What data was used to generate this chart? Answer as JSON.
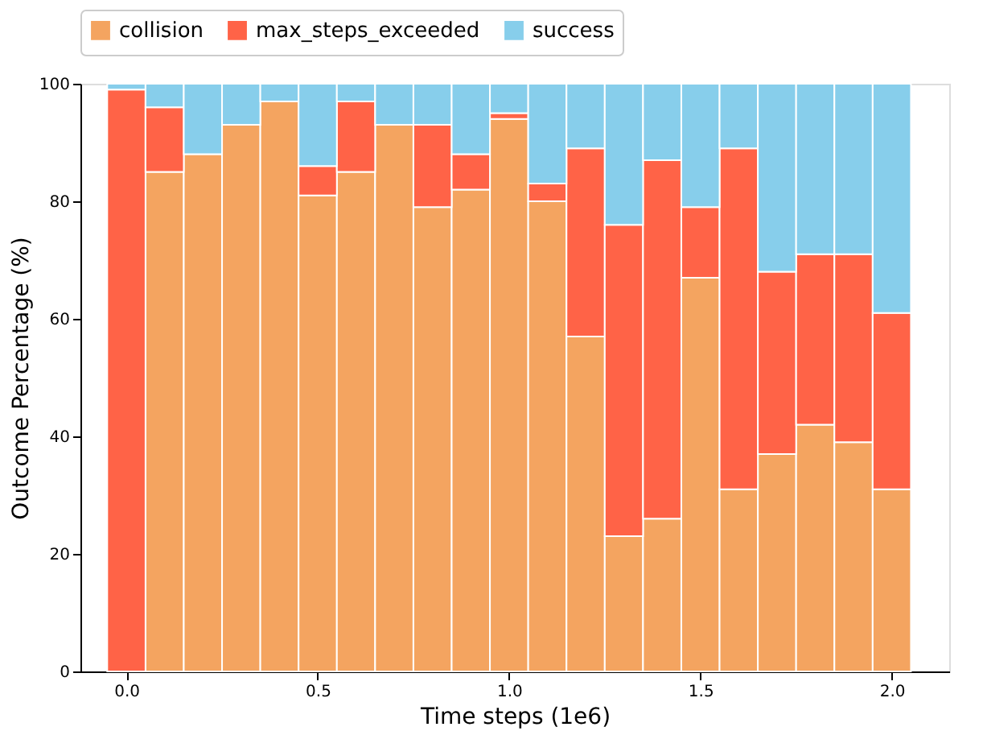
{
  "chart_data": {
    "type": "bar",
    "stacked": true,
    "xlabel": "Time steps (1e6)",
    "ylabel": "Outcome Percentage (%)",
    "x": [
      0.0,
      0.1,
      0.2,
      0.3,
      0.4,
      0.5,
      0.6,
      0.7,
      0.8,
      0.9,
      1.0,
      1.1,
      1.2,
      1.3,
      1.4,
      1.5,
      1.6,
      1.7,
      1.8,
      1.9,
      2.0
    ],
    "series": [
      {
        "name": "collision",
        "color": "#f4a460",
        "values": [
          0,
          85,
          88,
          93,
          97,
          81,
          85,
          93,
          79,
          82,
          94,
          80,
          57,
          23,
          26,
          67,
          31,
          37,
          42,
          39,
          31
        ]
      },
      {
        "name": "max_steps_exceeded",
        "color": "#ff6347",
        "values": [
          99,
          11,
          0,
          0,
          0,
          5,
          12,
          0,
          14,
          6,
          1,
          3,
          32,
          53,
          61,
          12,
          58,
          31,
          29,
          32,
          30
        ]
      },
      {
        "name": "success",
        "color": "#87ceeb",
        "values": [
          1,
          4,
          12,
          7,
          3,
          14,
          3,
          7,
          7,
          12,
          5,
          17,
          11,
          24,
          13,
          21,
          11,
          32,
          29,
          29,
          39
        ]
      }
    ],
    "xlim": [
      -0.12,
      2.15
    ],
    "xticks": [
      {
        "value": 0,
        "label": "0.0"
      },
      {
        "value": 0.5,
        "label": "0.5"
      },
      {
        "value": 1,
        "label": "1.0"
      },
      {
        "value": 1.5,
        "label": "1.5"
      },
      {
        "value": 2,
        "label": "2.0"
      }
    ],
    "ylim": [
      0,
      100
    ],
    "yticks": [
      0,
      20,
      40,
      60,
      80,
      100
    ],
    "grid": false,
    "legend": "top"
  }
}
